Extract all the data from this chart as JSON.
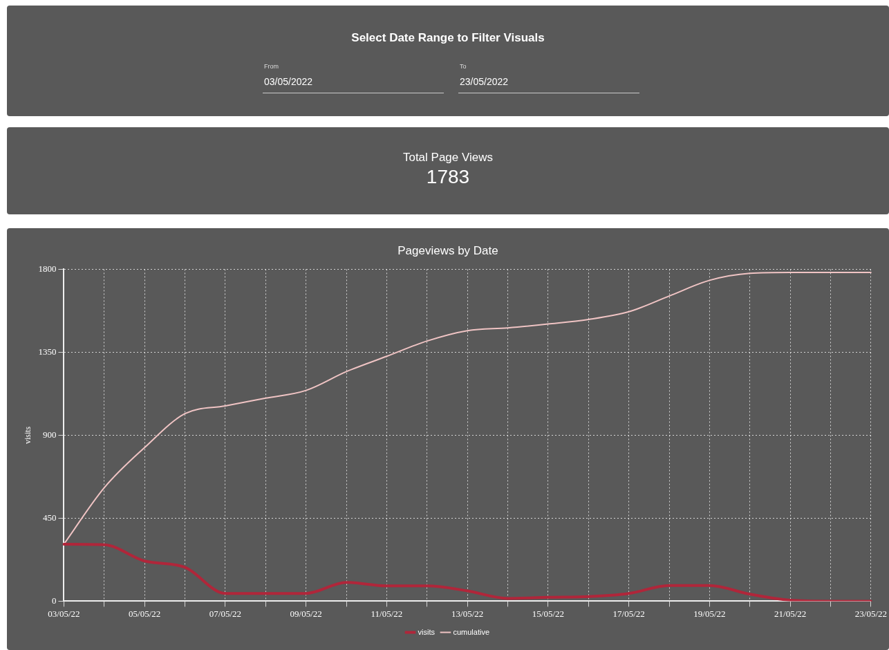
{
  "chart_data": {
    "type": "line",
    "title": "Pageviews by Date",
    "ylabel": "visits",
    "annotations": [
      "Select Date Range to Filter Visuals",
      "From",
      "03/05/2022",
      "To",
      "23/05/2022",
      "Total Page Views",
      "1783"
    ],
    "categories": [
      "03/05/22",
      null,
      "05/05/22",
      null,
      "07/05/22",
      null,
      "09/05/22",
      null,
      "11/05/22",
      null,
      "13/05/22",
      null,
      "15/05/22",
      null,
      "17/05/22",
      null,
      "19/05/22",
      null,
      "21/05/22",
      null,
      "23/05/22"
    ],
    "series": [
      {
        "name": "visits",
        "color": "#b0263a",
        "values": [
          309,
          306,
          218,
          184,
          42,
          42,
          42,
          102,
          83,
          83,
          56,
          15,
          21,
          25,
          42,
          85,
          85,
          38,
          5,
          0,
          0
        ]
      },
      {
        "name": "cumulative",
        "color": "#f0c4c4",
        "values": [
          309,
          615,
          833,
          1017,
          1059,
          1101,
          1143,
          1245,
          1328,
          1411,
          1467,
          1482,
          1503,
          1528,
          1570,
          1655,
          1740,
          1778,
          1783,
          1783,
          1783
        ]
      }
    ],
    "ylim": [
      0,
      1800
    ],
    "yticks": [
      0,
      450,
      900,
      1350,
      1800
    ],
    "grid": true,
    "legend": "bottom",
    "marker": "none",
    "line_style": "solid"
  }
}
